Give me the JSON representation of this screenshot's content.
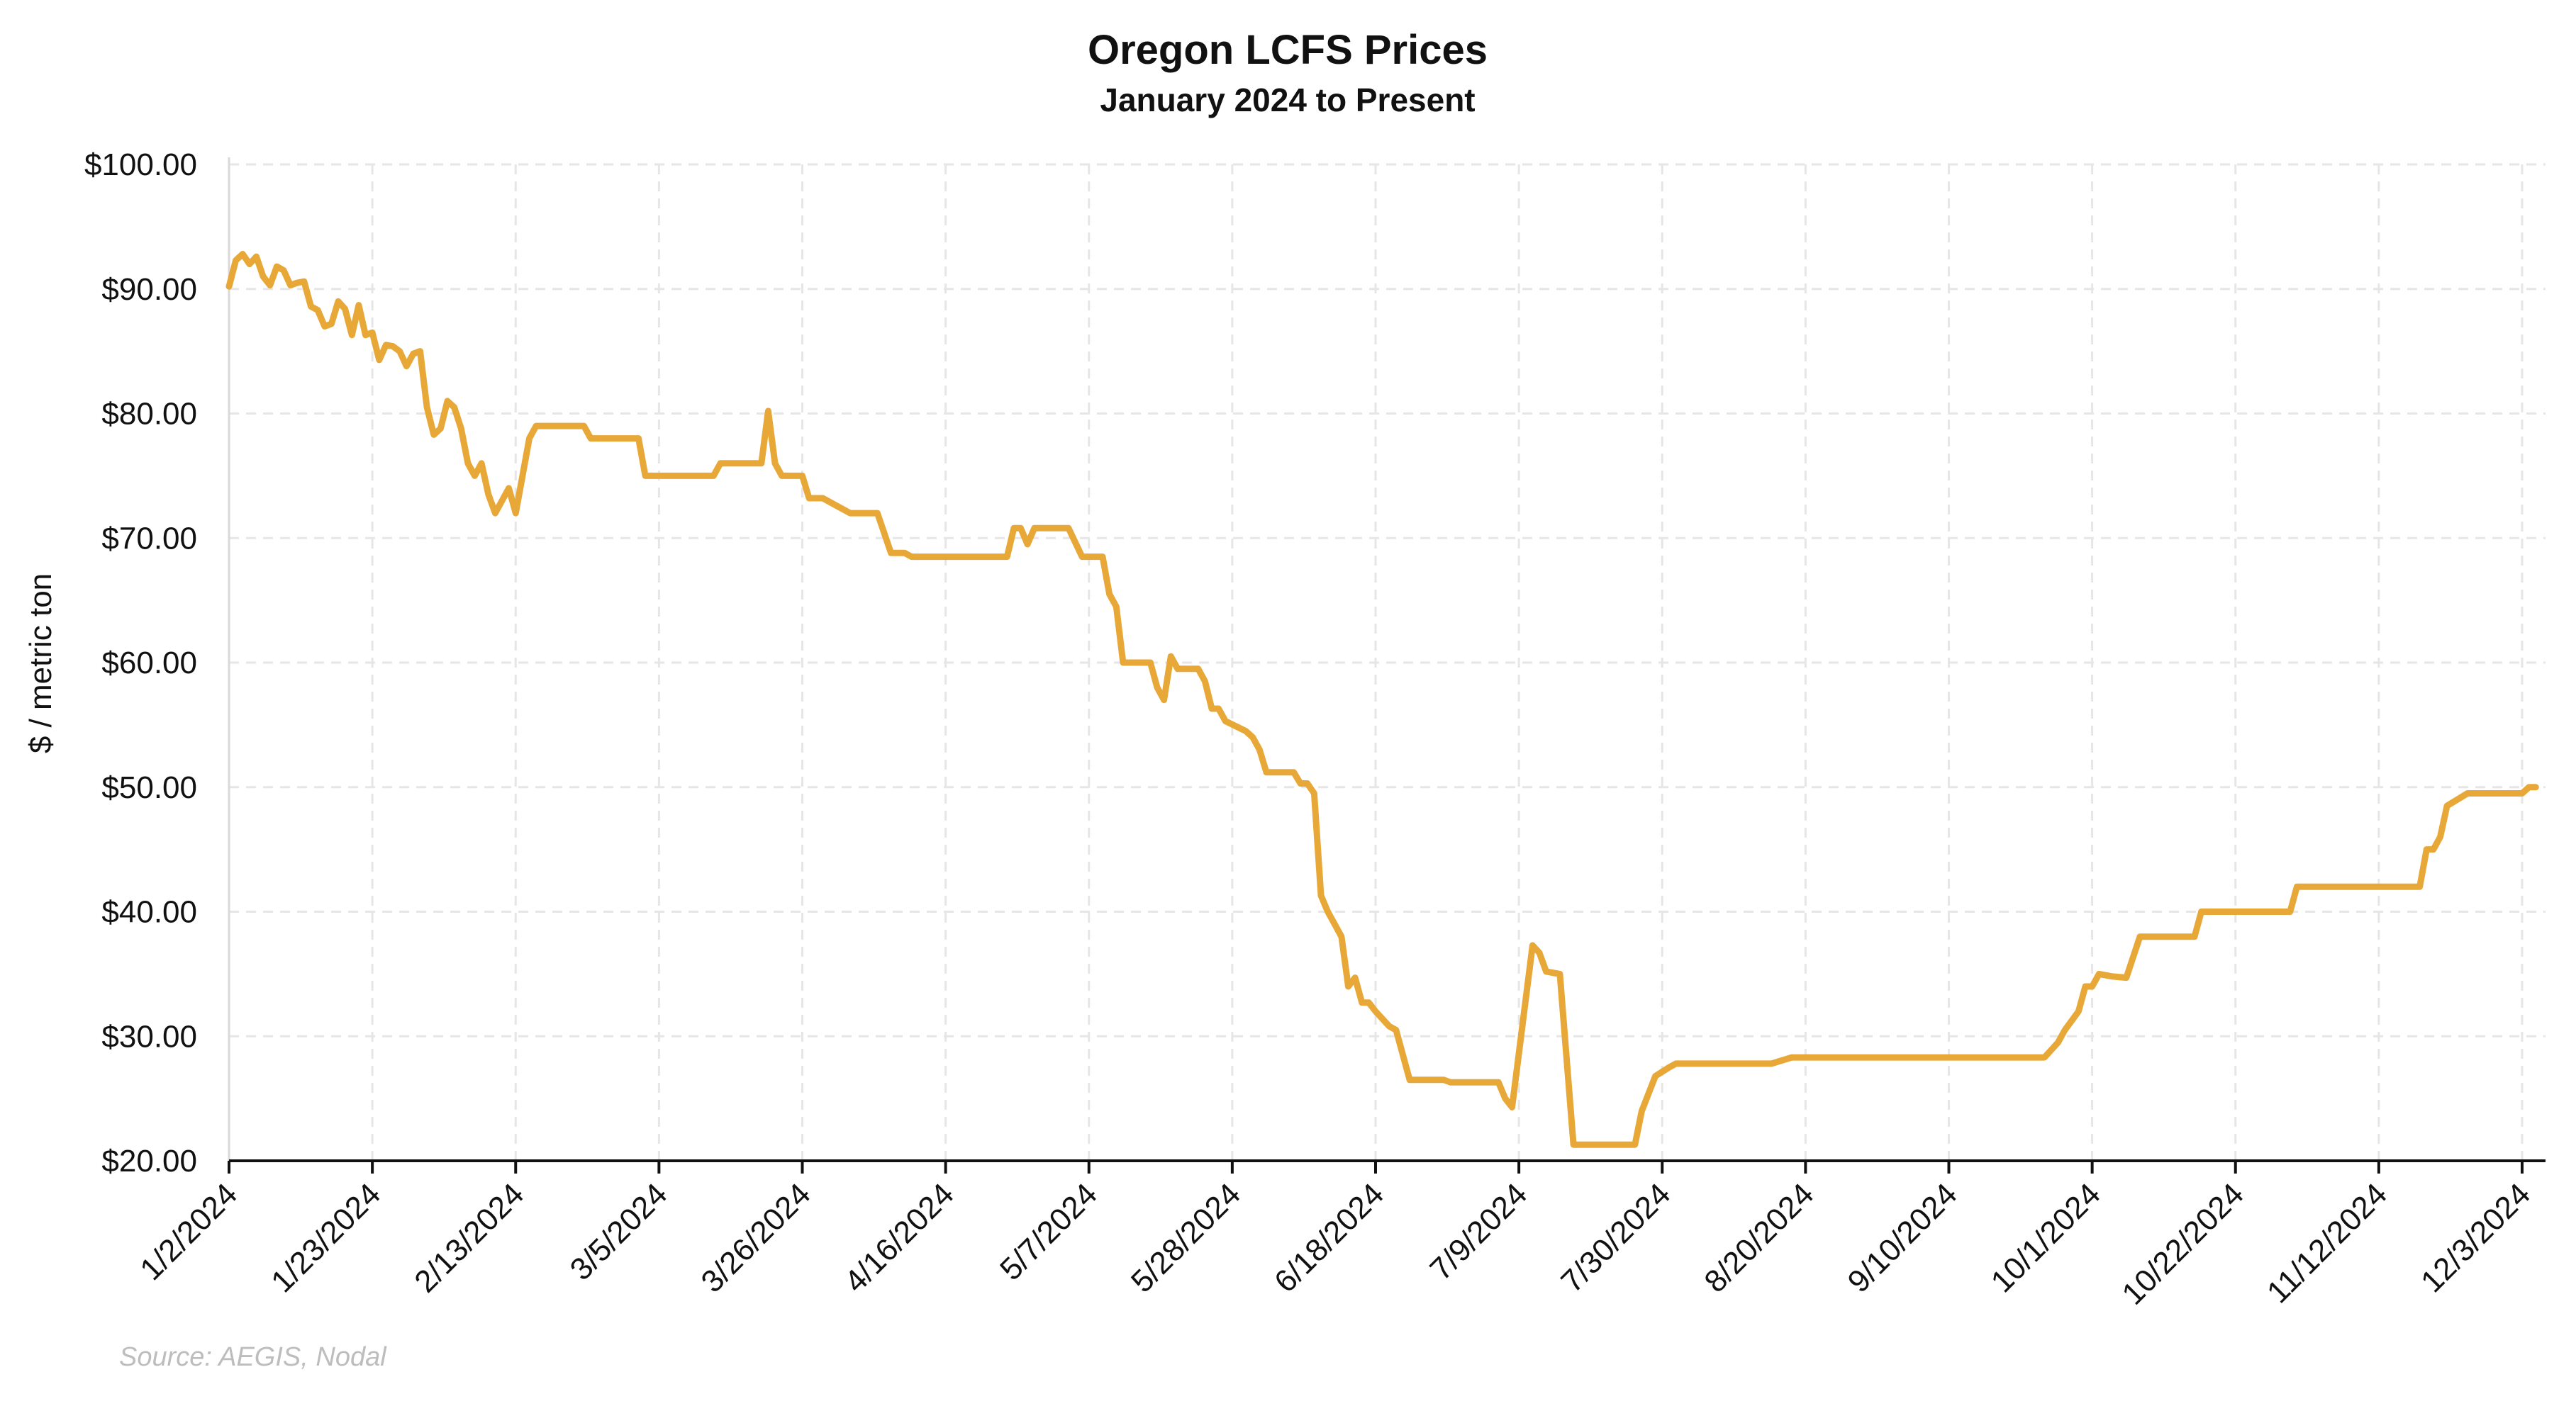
{
  "chart_data": {
    "type": "line",
    "title": "Oregon LCFS Prices",
    "subtitle": "January 2024 to Present",
    "ylabel": "$ / metric ton",
    "xlabel": "",
    "source": "Source: AEGIS, Nodal",
    "ylim": [
      20,
      100
    ],
    "xlim": [
      "2024-01-02",
      "2024-12-05"
    ],
    "y_ticks": [
      {
        "value": 100,
        "label": "$100.00"
      },
      {
        "value": 90,
        "label": "$90.00"
      },
      {
        "value": 80,
        "label": "$80.00"
      },
      {
        "value": 70,
        "label": "$70.00"
      },
      {
        "value": 60,
        "label": "$60.00"
      },
      {
        "value": 50,
        "label": "$50.00"
      },
      {
        "value": 40,
        "label": "$40.00"
      },
      {
        "value": 30,
        "label": "$30.00"
      },
      {
        "value": 20,
        "label": "$20.00"
      }
    ],
    "x_ticks": [
      {
        "date": "2024-01-02",
        "label": "1/2/2024"
      },
      {
        "date": "2024-01-23",
        "label": "1/23/2024"
      },
      {
        "date": "2024-02-13",
        "label": "2/13/2024"
      },
      {
        "date": "2024-03-05",
        "label": "3/5/2024"
      },
      {
        "date": "2024-03-26",
        "label": "3/26/2024"
      },
      {
        "date": "2024-04-16",
        "label": "4/16/2024"
      },
      {
        "date": "2024-05-07",
        "label": "5/7/2024"
      },
      {
        "date": "2024-05-28",
        "label": "5/28/2024"
      },
      {
        "date": "2024-06-18",
        "label": "6/18/2024"
      },
      {
        "date": "2024-07-09",
        "label": "7/9/2024"
      },
      {
        "date": "2024-07-30",
        "label": "7/30/2024"
      },
      {
        "date": "2024-08-20",
        "label": "8/20/2024"
      },
      {
        "date": "2024-09-10",
        "label": "9/10/2024"
      },
      {
        "date": "2024-10-01",
        "label": "10/1/2024"
      },
      {
        "date": "2024-10-22",
        "label": "10/22/2024"
      },
      {
        "date": "2024-11-12",
        "label": "11/12/2024"
      },
      {
        "date": "2024-12-03",
        "label": "12/3/2024"
      }
    ],
    "grid": true,
    "line_color": "#E8A838",
    "series": [
      {
        "points": [
          [
            "2024-01-02",
            90.2
          ],
          [
            "2024-01-03",
            92.3
          ],
          [
            "2024-01-04",
            92.8
          ],
          [
            "2024-01-05",
            92.0
          ],
          [
            "2024-01-06",
            92.6
          ],
          [
            "2024-01-07",
            91.0
          ],
          [
            "2024-01-08",
            90.3
          ],
          [
            "2024-01-09",
            91.8
          ],
          [
            "2024-01-10",
            91.5
          ],
          [
            "2024-01-11",
            90.3
          ],
          [
            "2024-01-12",
            90.5
          ],
          [
            "2024-01-13",
            90.6
          ],
          [
            "2024-01-14",
            88.6
          ],
          [
            "2024-01-15",
            88.3
          ],
          [
            "2024-01-16",
            87.0
          ],
          [
            "2024-01-17",
            87.2
          ],
          [
            "2024-01-18",
            89.0
          ],
          [
            "2024-01-19",
            88.4
          ],
          [
            "2024-01-20",
            86.3
          ],
          [
            "2024-01-21",
            88.7
          ],
          [
            "2024-01-22",
            86.3
          ],
          [
            "2024-01-23",
            86.5
          ],
          [
            "2024-01-24",
            84.3
          ],
          [
            "2024-01-25",
            85.5
          ],
          [
            "2024-01-26",
            85.4
          ],
          [
            "2024-01-27",
            85.0
          ],
          [
            "2024-01-28",
            83.8
          ],
          [
            "2024-01-29",
            84.8
          ],
          [
            "2024-01-30",
            85.0
          ],
          [
            "2024-01-31",
            80.5
          ],
          [
            "2024-02-01",
            78.3
          ],
          [
            "2024-02-02",
            78.8
          ],
          [
            "2024-02-03",
            81.0
          ],
          [
            "2024-02-04",
            80.5
          ],
          [
            "2024-02-05",
            78.8
          ],
          [
            "2024-02-06",
            76.0
          ],
          [
            "2024-02-07",
            75.0
          ],
          [
            "2024-02-08",
            76.0
          ],
          [
            "2024-02-09",
            73.5
          ],
          [
            "2024-02-10",
            72.0
          ],
          [
            "2024-02-11",
            73.0
          ],
          [
            "2024-02-12",
            74.0
          ],
          [
            "2024-02-13",
            72.0
          ],
          [
            "2024-02-14",
            75.0
          ],
          [
            "2024-02-15",
            78.0
          ],
          [
            "2024-02-16",
            79.0
          ],
          [
            "2024-02-20",
            79.0
          ],
          [
            "2024-02-23",
            79.0
          ],
          [
            "2024-02-24",
            78.0
          ],
          [
            "2024-03-02",
            78.0
          ],
          [
            "2024-03-03",
            75.0
          ],
          [
            "2024-03-12",
            75.0
          ],
          [
            "2024-03-13",
            75.0
          ],
          [
            "2024-03-14",
            76.0
          ],
          [
            "2024-03-20",
            76.0
          ],
          [
            "2024-03-21",
            80.2
          ],
          [
            "2024-03-22",
            76.0
          ],
          [
            "2024-03-23",
            75.0
          ],
          [
            "2024-03-26",
            75.0
          ],
          [
            "2024-03-27",
            73.2
          ],
          [
            "2024-03-29",
            73.2
          ],
          [
            "2024-04-02",
            72.0
          ],
          [
            "2024-04-06",
            72.0
          ],
          [
            "2024-04-08",
            68.8
          ],
          [
            "2024-04-10",
            68.8
          ],
          [
            "2024-04-11",
            68.5
          ],
          [
            "2024-04-23",
            68.5
          ],
          [
            "2024-04-25",
            68.5
          ],
          [
            "2024-04-26",
            70.8
          ],
          [
            "2024-04-27",
            70.8
          ],
          [
            "2024-04-28",
            69.5
          ],
          [
            "2024-04-29",
            70.8
          ],
          [
            "2024-05-04",
            70.8
          ],
          [
            "2024-05-06",
            68.5
          ],
          [
            "2024-05-09",
            68.5
          ],
          [
            "2024-05-10",
            65.5
          ],
          [
            "2024-05-11",
            64.5
          ],
          [
            "2024-05-12",
            60.0
          ],
          [
            "2024-05-16",
            60.0
          ],
          [
            "2024-05-17",
            58.0
          ],
          [
            "2024-05-18",
            57.0
          ],
          [
            "2024-05-19",
            60.5
          ],
          [
            "2024-05-20",
            59.5
          ],
          [
            "2024-05-23",
            59.5
          ],
          [
            "2024-05-24",
            58.5
          ],
          [
            "2024-05-25",
            56.3
          ],
          [
            "2024-05-26",
            56.3
          ],
          [
            "2024-05-27",
            55.3
          ],
          [
            "2024-05-30",
            54.5
          ],
          [
            "2024-05-31",
            54.0
          ],
          [
            "2024-06-01",
            53.0
          ],
          [
            "2024-06-02",
            51.2
          ],
          [
            "2024-06-06",
            51.2
          ],
          [
            "2024-06-07",
            50.3
          ],
          [
            "2024-06-08",
            50.3
          ],
          [
            "2024-06-09",
            49.5
          ],
          [
            "2024-06-10",
            41.3
          ],
          [
            "2024-06-11",
            40.0
          ],
          [
            "2024-06-12",
            39.0
          ],
          [
            "2024-06-13",
            38.0
          ],
          [
            "2024-06-14",
            34.0
          ],
          [
            "2024-06-15",
            34.7
          ],
          [
            "2024-06-16",
            32.7
          ],
          [
            "2024-06-17",
            32.7
          ],
          [
            "2024-06-18",
            32.0
          ],
          [
            "2024-06-20",
            30.8
          ],
          [
            "2024-06-21",
            30.5
          ],
          [
            "2024-06-23",
            26.5
          ],
          [
            "2024-06-28",
            26.5
          ],
          [
            "2024-06-29",
            26.3
          ],
          [
            "2024-07-06",
            26.3
          ],
          [
            "2024-07-07",
            25.0
          ],
          [
            "2024-07-08",
            24.3
          ],
          [
            "2024-07-11",
            37.3
          ],
          [
            "2024-07-12",
            36.7
          ],
          [
            "2024-07-13",
            35.2
          ],
          [
            "2024-07-15",
            35.0
          ],
          [
            "2024-07-17",
            21.3
          ],
          [
            "2024-07-26",
            21.3
          ],
          [
            "2024-07-27",
            24.0
          ],
          [
            "2024-07-29",
            26.8
          ],
          [
            "2024-07-31",
            27.5
          ],
          [
            "2024-08-01",
            27.8
          ],
          [
            "2024-08-15",
            27.8
          ],
          [
            "2024-08-18",
            28.3
          ],
          [
            "2024-09-24",
            28.3
          ],
          [
            "2024-09-26",
            29.5
          ],
          [
            "2024-09-27",
            30.5
          ],
          [
            "2024-09-29",
            32.0
          ],
          [
            "2024-09-30",
            34.0
          ],
          [
            "2024-10-01",
            34.0
          ],
          [
            "2024-10-02",
            35.0
          ],
          [
            "2024-10-04",
            34.8
          ],
          [
            "2024-10-06",
            34.7
          ],
          [
            "2024-10-08",
            38.0
          ],
          [
            "2024-10-14",
            38.0
          ],
          [
            "2024-10-16",
            38.0
          ],
          [
            "2024-10-17",
            40.0
          ],
          [
            "2024-10-21",
            40.0
          ],
          [
            "2024-10-30",
            40.0
          ],
          [
            "2024-10-31",
            42.0
          ],
          [
            "2024-11-05",
            42.0
          ],
          [
            "2024-11-18",
            42.0
          ],
          [
            "2024-11-19",
            45.0
          ],
          [
            "2024-11-20",
            45.0
          ],
          [
            "2024-11-21",
            46.0
          ],
          [
            "2024-11-22",
            48.5
          ],
          [
            "2024-11-25",
            49.5
          ],
          [
            "2024-12-02",
            49.5
          ],
          [
            "2024-12-03",
            49.5
          ],
          [
            "2024-12-04",
            50.0
          ],
          [
            "2024-12-05",
            50.0
          ]
        ]
      }
    ]
  }
}
